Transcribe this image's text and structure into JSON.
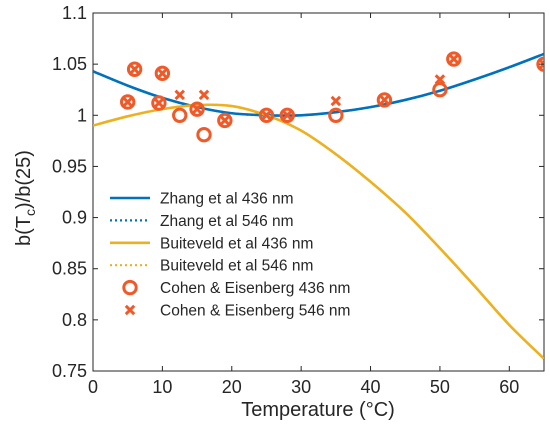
{
  "chart_data": {
    "type": "line",
    "xlabel": "Temperature (°C)",
    "ylabel_main": "b(T",
    "ylabel_sub": "c",
    "ylabel_tail": ")/b(25)",
    "xlim": [
      0,
      65
    ],
    "ylim": [
      0.75,
      1.1
    ],
    "xticks": [
      0,
      10,
      20,
      30,
      40,
      50,
      60
    ],
    "yticks": [
      0.75,
      0.8,
      0.85,
      0.9,
      0.95,
      1,
      1.05,
      1.1
    ],
    "ytick_labels": [
      "0.75",
      "0.8",
      "0.85",
      "0.9",
      "0.95",
      "1",
      "1.05",
      "1.1"
    ],
    "grid": false,
    "legend_position": "lower-left",
    "colors": {
      "zhang": "#0072BD",
      "buiteveld": "#EDB120",
      "cohen": "#F05A28",
      "axis": "#262626"
    },
    "series": [
      {
        "name": "Zhang et al 436 nm",
        "style": "solid",
        "color": "#0072BD",
        "x": [
          0,
          5,
          10,
          15,
          20,
          25,
          30,
          35,
          40,
          45,
          50,
          55,
          60,
          65
        ],
        "y": [
          1.043,
          1.029,
          1.017,
          1.008,
          1.002,
          1.0,
          1.0,
          1.003,
          1.008,
          1.015,
          1.024,
          1.035,
          1.047,
          1.06
        ]
      },
      {
        "name": "Zhang et al 546 nm",
        "style": "dotted",
        "color": "#0072BD",
        "x": [
          0,
          5,
          10,
          15,
          20,
          25,
          30,
          35,
          40,
          45,
          50,
          55,
          60,
          65
        ],
        "y": [
          1.043,
          1.029,
          1.017,
          1.008,
          1.002,
          1.0,
          1.0,
          1.003,
          1.008,
          1.015,
          1.024,
          1.035,
          1.047,
          1.06
        ]
      },
      {
        "name": "Buiteveld et al 436 nm",
        "style": "solid",
        "color": "#EDB120",
        "x": [
          0,
          5,
          10,
          15,
          20,
          25,
          30,
          35,
          40,
          45,
          50,
          55,
          60,
          65
        ],
        "y": [
          0.99,
          0.999,
          1.006,
          1.01,
          1.009,
          1.0,
          0.985,
          0.962,
          0.935,
          0.905,
          0.87,
          0.833,
          0.795,
          0.762
        ]
      },
      {
        "name": "Buiteveld et al 546 nm",
        "style": "dotted",
        "color": "#EDB120",
        "x": [
          0,
          5,
          10,
          15,
          20,
          25,
          30,
          35,
          40,
          45,
          50,
          55,
          60,
          65
        ],
        "y": [
          0.99,
          0.999,
          1.006,
          1.01,
          1.009,
          1.0,
          0.985,
          0.962,
          0.935,
          0.905,
          0.87,
          0.833,
          0.795,
          0.762
        ]
      },
      {
        "name": "Cohen & Eisenberg 436 nm",
        "style": "marker-circle",
        "color": "#F05A28",
        "x": [
          5,
          6,
          9.5,
          10,
          12.5,
          15,
          16,
          19,
          25,
          28,
          35,
          42,
          50,
          52,
          65
        ],
        "y": [
          1.013,
          1.045,
          1.012,
          1.041,
          1.0,
          1.006,
          0.981,
          0.995,
          1.0,
          1.0,
          1.0,
          1.015,
          1.025,
          1.055,
          1.05
        ]
      },
      {
        "name": "Cohen & Eisenberg 546 nm",
        "style": "marker-x",
        "color": "#F05A28",
        "x": [
          5,
          6,
          9.5,
          10,
          12.5,
          15,
          16,
          19,
          25,
          28,
          35,
          42,
          50,
          52,
          65
        ],
        "y": [
          1.013,
          1.045,
          1.012,
          1.041,
          1.02,
          1.006,
          1.02,
          0.995,
          1.0,
          1.0,
          1.014,
          1.015,
          1.035,
          1.055,
          1.05
        ]
      }
    ]
  }
}
